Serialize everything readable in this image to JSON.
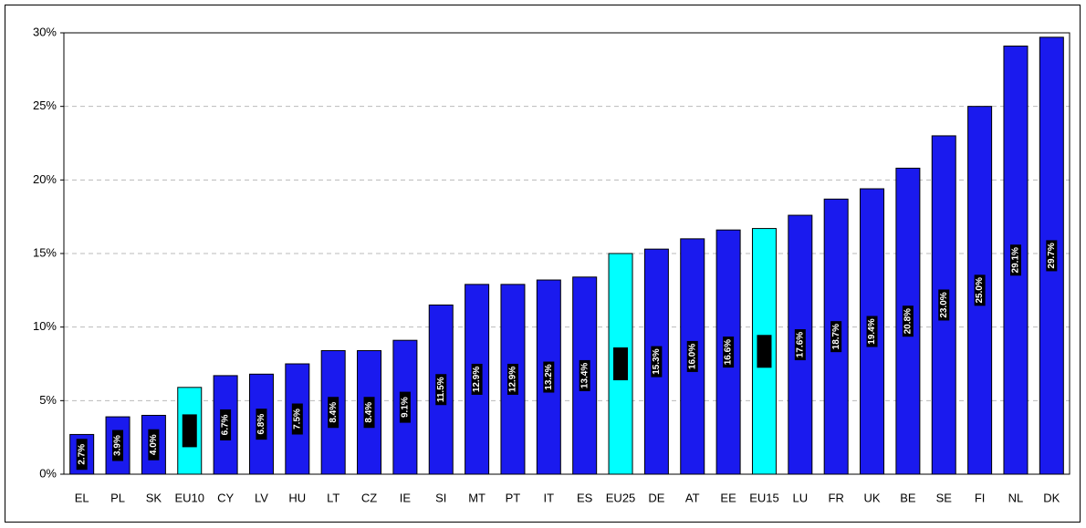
{
  "chart_data": {
    "type": "bar",
    "categories": [
      "EL",
      "PL",
      "SK",
      "EU10",
      "CY",
      "LV",
      "HU",
      "LT",
      "CZ",
      "IE",
      "SI",
      "MT",
      "PT",
      "IT",
      "ES",
      "EU25",
      "DE",
      "AT",
      "EE",
      "EU15",
      "LU",
      "FR",
      "UK",
      "BE",
      "SE",
      "FI",
      "NL",
      "DK"
    ],
    "values": [
      2.7,
      3.9,
      4.0,
      5.9,
      6.7,
      6.8,
      7.5,
      8.4,
      8.4,
      9.1,
      11.5,
      12.9,
      12.9,
      13.2,
      13.4,
      15.0,
      15.3,
      16.0,
      16.6,
      16.7,
      17.6,
      18.7,
      19.4,
      20.8,
      23.0,
      25.0,
      29.1,
      29.7
    ],
    "value_labels": [
      "2.7%",
      "3.9%",
      "4.0%",
      null,
      "6.7%",
      "6.8%",
      "7.5%",
      "8.4%",
      "8.4%",
      "9.1%",
      "11.5%",
      "12.9%",
      "12.9%",
      "13.2%",
      "13.4%",
      null,
      "15.3%",
      "16.0%",
      "16.6%",
      null,
      "17.6%",
      "18.7%",
      "19.4%",
      "20.8%",
      "23.0%",
      "25.0%",
      "29.1%",
      "29.7%"
    ],
    "colors": [
      "#1a1aee",
      "#1a1aee",
      "#1a1aee",
      "#00ffff",
      "#1a1aee",
      "#1a1aee",
      "#1a1aee",
      "#1a1aee",
      "#1a1aee",
      "#1a1aee",
      "#1a1aee",
      "#1a1aee",
      "#1a1aee",
      "#1a1aee",
      "#1a1aee",
      "#00ffff",
      "#1a1aee",
      "#1a1aee",
      "#1a1aee",
      "#00ffff",
      "#1a1aee",
      "#1a1aee",
      "#1a1aee",
      "#1a1aee",
      "#1a1aee",
      "#1a1aee",
      "#1a1aee",
      "#1a1aee"
    ],
    "ylim": [
      0,
      30
    ],
    "yticks": [
      {
        "value": 0,
        "label": "0%"
      },
      {
        "value": 5,
        "label": "5%"
      },
      {
        "value": 10,
        "label": "10%"
      },
      {
        "value": 15,
        "label": "15%"
      },
      {
        "value": 20,
        "label": "20%"
      },
      {
        "value": 25,
        "label": "25%"
      },
      {
        "value": 30,
        "label": "30%"
      }
    ],
    "grid": true
  }
}
